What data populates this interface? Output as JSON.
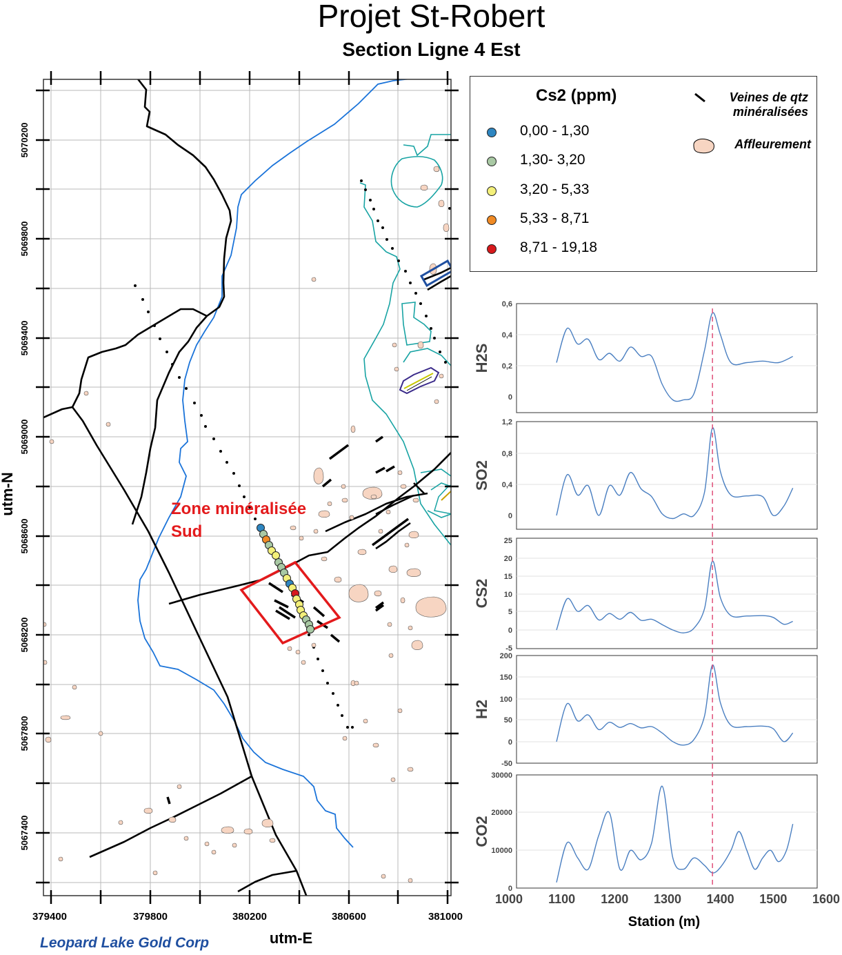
{
  "title": "Projet St-Robert",
  "subtitle": "Section Ligne 4 Est",
  "footer": "Leopard Lake Gold Corp",
  "map": {
    "xlabel": "utm-E",
    "ylabel": "utm-N",
    "x_ticks": [
      "379400",
      "379800",
      "380200",
      "380600",
      "381000"
    ],
    "y_ticks": [
      "5070200",
      "5069800",
      "5069400",
      "5069000",
      "5068600",
      "5068200",
      "5067800",
      "5067400"
    ],
    "zone_label_line1": "Zone minéralisée",
    "zone_label_line2": "Sud",
    "colors": {
      "river": "#1a73d9",
      "road": "#000000",
      "zone": "#e31a1c",
      "outcrop": "#f7d5c2",
      "contour": "#17a3a3"
    }
  },
  "legend": {
    "title": "Cs2 (ppm)",
    "classes": [
      {
        "label": "0,00 - 1,30",
        "color": "#2e86c1"
      },
      {
        "label": "1,30- 3,20",
        "color": "#a9c9a4"
      },
      {
        "label": "3,20 - 5,33",
        "color": "#f4f07a"
      },
      {
        "label": "5,33 - 8,71",
        "color": "#f08a24"
      },
      {
        "label": "8,71 - 19,18",
        "color": "#d7191c"
      }
    ],
    "veins_line1": "Veines de qtz",
    "veins_line2": "minéralisées",
    "outcrop": "Affleurement"
  },
  "chart_data": [
    {
      "type": "line",
      "name": "H2S",
      "ylabel": "H2S",
      "yticks": [
        "0,6",
        "0,4",
        "0,2",
        "0"
      ],
      "ylim": [
        -0.05,
        0.6
      ],
      "x": [
        1090,
        1110,
        1130,
        1150,
        1170,
        1190,
        1210,
        1230,
        1250,
        1270,
        1290,
        1310,
        1330,
        1350,
        1370,
        1385,
        1400,
        1420,
        1450,
        1480,
        1510,
        1537
      ],
      "values": [
        0.22,
        0.44,
        0.34,
        0.37,
        0.24,
        0.28,
        0.23,
        0.32,
        0.26,
        0.26,
        0.08,
        -0.02,
        -0.02,
        0.02,
        0.3,
        0.54,
        0.4,
        0.22,
        0.22,
        0.23,
        0.22,
        0.26
      ]
    },
    {
      "type": "line",
      "name": "SO2",
      "ylabel": "SO2",
      "yticks": [
        "1,2",
        "0,8",
        "0,4",
        "0"
      ],
      "ylim": [
        -0.1,
        1.2
      ],
      "x": [
        1090,
        1110,
        1130,
        1150,
        1170,
        1190,
        1210,
        1230,
        1250,
        1270,
        1290,
        1310,
        1330,
        1350,
        1370,
        1385,
        1400,
        1420,
        1450,
        1480,
        1500,
        1520,
        1537
      ],
      "values": [
        0.0,
        0.52,
        0.26,
        0.38,
        0.0,
        0.38,
        0.26,
        0.55,
        0.34,
        0.24,
        0.02,
        -0.04,
        0.02,
        0.0,
        0.3,
        1.12,
        0.56,
        0.26,
        0.25,
        0.24,
        0.0,
        0.12,
        0.35
      ]
    },
    {
      "type": "line",
      "name": "CS2",
      "ylabel": "CS2",
      "yticks": [
        "25",
        "20",
        "15",
        "10",
        "5",
        "0",
        "-5"
      ],
      "ylim": [
        -5,
        25
      ],
      "x": [
        1090,
        1110,
        1130,
        1150,
        1170,
        1190,
        1210,
        1230,
        1250,
        1270,
        1290,
        1310,
        1330,
        1350,
        1370,
        1385,
        1400,
        1420,
        1450,
        1480,
        1500,
        1520,
        1537
      ],
      "values": [
        0.0,
        8.7,
        5.2,
        6.8,
        2.8,
        4.6,
        3.0,
        4.9,
        2.7,
        3.0,
        1.5,
        0.0,
        -0.8,
        0.5,
        6.0,
        19.2,
        9.0,
        4.0,
        3.9,
        4.0,
        3.5,
        1.6,
        2.4
      ]
    },
    {
      "type": "line",
      "name": "H2",
      "ylabel": "H2",
      "yticks": [
        "200",
        "150",
        "100",
        "50",
        "0",
        "-50"
      ],
      "ylim": [
        -50,
        200
      ],
      "x": [
        1090,
        1110,
        1130,
        1150,
        1170,
        1190,
        1210,
        1230,
        1250,
        1270,
        1290,
        1310,
        1330,
        1350,
        1370,
        1385,
        1400,
        1420,
        1450,
        1480,
        1500,
        1520,
        1537
      ],
      "values": [
        0,
        88,
        48,
        62,
        28,
        45,
        33,
        42,
        32,
        35,
        20,
        0,
        -8,
        5,
        60,
        178,
        90,
        38,
        35,
        36,
        30,
        0,
        20
      ]
    },
    {
      "type": "line",
      "name": "CO2",
      "ylabel": "CO2",
      "yticks": [
        "30000",
        "20000",
        "10000",
        "0"
      ],
      "ylim": [
        0,
        30000
      ],
      "x": [
        1090,
        1110,
        1130,
        1150,
        1170,
        1190,
        1210,
        1230,
        1250,
        1270,
        1290,
        1310,
        1330,
        1350,
        1370,
        1385,
        1400,
        1420,
        1435,
        1450,
        1465,
        1480,
        1495,
        1510,
        1525,
        1537
      ],
      "values": [
        1500,
        12000,
        8000,
        5000,
        14000,
        20000,
        5000,
        10000,
        7500,
        12000,
        27000,
        8000,
        5000,
        8000,
        6000,
        4000,
        5500,
        10000,
        15000,
        10000,
        5000,
        8000,
        10000,
        7000,
        10000,
        17000
      ]
    }
  ],
  "x_axis": {
    "label": "Station (m)",
    "ticks": [
      "1000",
      "1100",
      "1200",
      "1300",
      "1400",
      "1500",
      "1600"
    ],
    "xlim": [
      1000,
      1600
    ],
    "marker": 1385
  }
}
